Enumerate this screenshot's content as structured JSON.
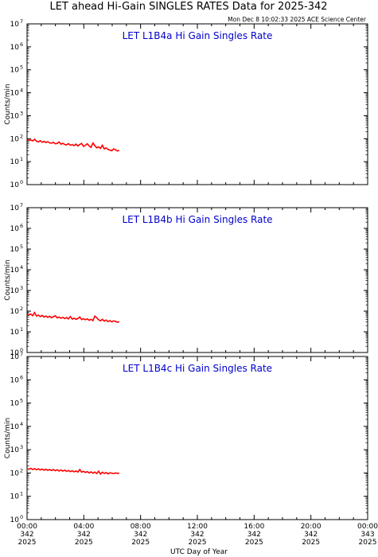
{
  "title": "LET ahead Hi-Gain SINGLES RATES Data for 2025-342",
  "timestamp": "Mon Dec  8 10:02:33 2025 ACE Science Center",
  "chart_data": [
    {
      "type": "line",
      "title": "LET L1B4a Hi Gain Singles Rate",
      "ylabel": "Counts/min",
      "xlabel": "UTC Day of Year",
      "yscale": "log",
      "ylim": [
        1,
        10000000
      ],
      "xlim": [
        0,
        24
      ],
      "color": "#ff0000",
      "x_start": 0.0,
      "x_end": 6.5,
      "y": [
        90,
        85,
        88,
        80,
        95,
        78,
        72,
        82,
        70,
        76,
        68,
        74,
        66,
        64,
        70,
        60,
        62,
        72,
        58,
        63,
        56,
        54,
        61,
        52,
        55,
        50,
        58,
        48,
        56,
        62,
        46,
        52,
        60,
        48,
        42,
        65,
        50,
        40,
        44,
        38,
        52,
        36,
        40,
        34,
        32,
        30,
        36,
        33,
        29,
        31
      ]
    },
    {
      "type": "line",
      "title": "LET L1B4b Hi Gain Singles Rate",
      "ylabel": "Counts/min",
      "xlabel": "UTC Day of Year",
      "yscale": "log",
      "ylim": [
        1,
        10000000
      ],
      "xlim": [
        0,
        24
      ],
      "color": "#ff0000",
      "x_start": 0.0,
      "x_end": 6.5,
      "y": [
        70,
        65,
        72,
        60,
        85,
        58,
        64,
        55,
        62,
        52,
        58,
        50,
        56,
        48,
        54,
        60,
        47,
        52,
        45,
        50,
        44,
        49,
        42,
        55,
        41,
        46,
        40,
        44,
        52,
        39,
        43,
        38,
        42,
        36,
        40,
        35,
        58,
        48,
        38,
        34,
        40,
        33,
        37,
        31,
        35,
        30,
        34,
        32,
        29,
        31
      ]
    },
    {
      "type": "line",
      "title": "LET L1B4c Hi Gain Singles Rate",
      "ylabel": "Counts/min",
      "xlabel": "UTC Day of Year",
      "yscale": "log",
      "ylim": [
        1,
        10000000
      ],
      "xlim": [
        0,
        24
      ],
      "color": "#ff0000",
      "x_start": 0.0,
      "x_end": 6.5,
      "y": [
        150,
        145,
        160,
        140,
        155,
        138,
        150,
        135,
        148,
        132,
        145,
        130,
        142,
        128,
        140,
        125,
        138,
        122,
        135,
        120,
        132,
        118,
        128,
        115,
        125,
        112,
        122,
        110,
        140,
        108,
        118,
        105,
        115,
        100,
        112,
        98,
        110,
        95,
        120,
        90,
        108,
        95,
        105,
        92,
        102,
        98,
        95,
        100,
        97,
        99
      ]
    }
  ],
  "ytick_base": "10",
  "ytick_exponents": [
    "0",
    "1",
    "2",
    "3",
    "4",
    "5",
    "6",
    "7"
  ],
  "xticks": [
    {
      "hour": 0,
      "time": "00:00",
      "doy": "342",
      "year": "2025"
    },
    {
      "hour": 4,
      "time": "04:00",
      "doy": "342",
      "year": "2025"
    },
    {
      "hour": 8,
      "time": "08:00",
      "doy": "342",
      "year": "2025"
    },
    {
      "hour": 12,
      "time": "12:00",
      "doy": "342",
      "year": "2025"
    },
    {
      "hour": 16,
      "time": "16:00",
      "doy": "342",
      "year": "2025"
    },
    {
      "hour": 20,
      "time": "20:00",
      "doy": "342",
      "year": "2025"
    },
    {
      "hour": 24,
      "time": "00:00",
      "doy": "343",
      "year": "2025"
    }
  ]
}
